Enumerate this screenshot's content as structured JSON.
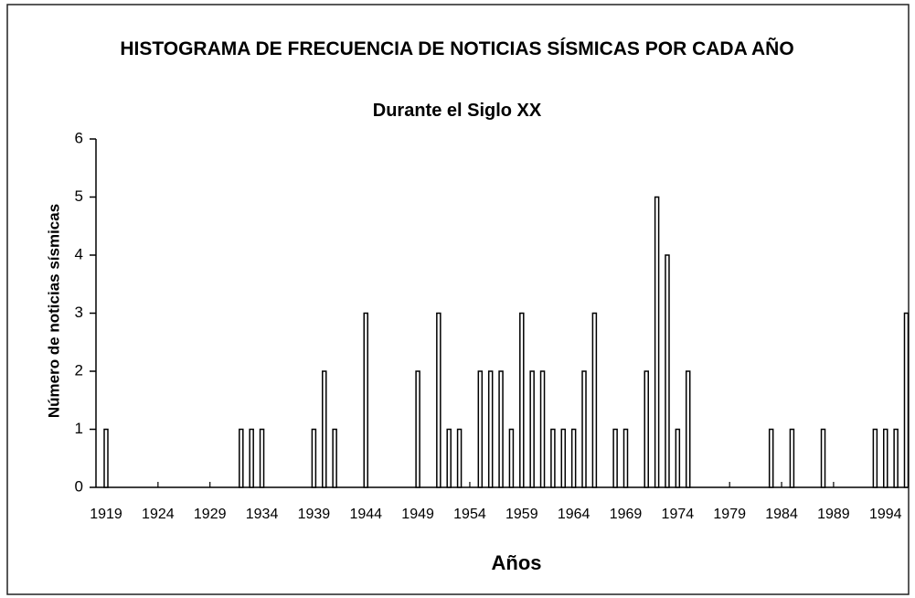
{
  "chart_data": {
    "type": "bar",
    "title": "HISTOGRAMA DE FRECUENCIA DE NOTICIAS SÍSMICAS POR CADA AÑO",
    "subtitle": "Durante el Siglo XX",
    "x_label": "Años",
    "y_label": "Número de noticias sísmicas",
    "categories": [
      "1919",
      null,
      null,
      null,
      null,
      "1924",
      null,
      null,
      null,
      null,
      "1929",
      null,
      null,
      null,
      null,
      "1934",
      null,
      null,
      null,
      null,
      "1939",
      null,
      null,
      null,
      null,
      "1944",
      null,
      null,
      null,
      null,
      "1949",
      null,
      null,
      null,
      null,
      "1954",
      null,
      null,
      null,
      null,
      "1959",
      null,
      null,
      null,
      null,
      "1964",
      null,
      null,
      null,
      null,
      "1969",
      null,
      null,
      null,
      null,
      "1974",
      null,
      null,
      null,
      null,
      "1979",
      null,
      null,
      null,
      null,
      "1984",
      null,
      null,
      null,
      null,
      "1989",
      null,
      null,
      null,
      null,
      "1994",
      null,
      null
    ],
    "values": [
      1,
      0,
      0,
      0,
      0,
      0,
      0,
      0,
      0,
      0,
      0,
      0,
      0,
      1,
      1,
      1,
      0,
      0,
      0,
      0,
      1,
      2,
      1,
      0,
      0,
      3,
      0,
      0,
      0,
      0,
      2,
      0,
      3,
      1,
      1,
      0,
      2,
      2,
      2,
      1,
      3,
      2,
      2,
      1,
      1,
      1,
      2,
      3,
      0,
      1,
      1,
      0,
      2,
      5,
      4,
      1,
      2,
      0,
      0,
      0,
      0,
      0,
      0,
      0,
      1,
      0,
      1,
      0,
      0,
      1,
      0,
      0,
      0,
      0,
      1,
      1,
      1,
      3
    ],
    "color": "#ffffff",
    "ylim": [
      0,
      6
    ],
    "yticks": [
      0,
      1,
      2,
      3,
      4,
      5,
      6
    ],
    "grid": false
  }
}
